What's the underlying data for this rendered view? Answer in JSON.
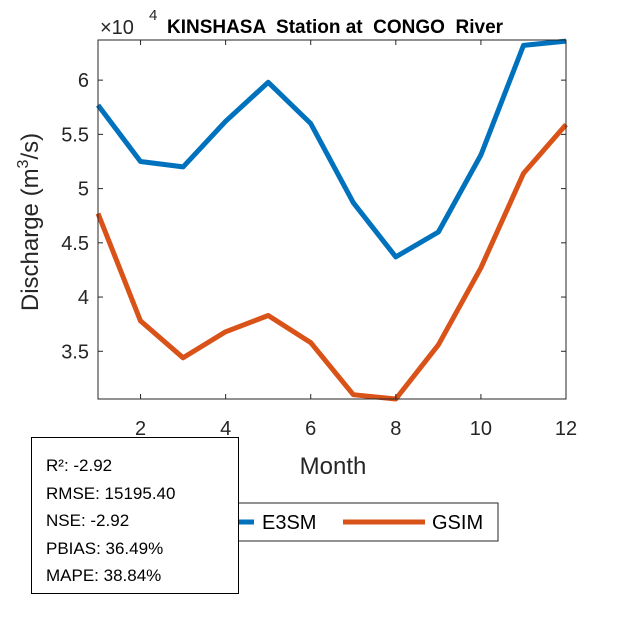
{
  "chart_data": {
    "type": "line",
    "title": "KINSHASA  Station at  CONGO  River",
    "xlabel": "Month",
    "ylabel_main": "Discharge (m",
    "ylabel_sup": "3",
    "ylabel_tail": "/s)",
    "y_multiplier": "×10",
    "y_multiplier_exp": "4",
    "xlim": [
      1,
      12
    ],
    "ylim": [
      3.06,
      6.37
    ],
    "y_scale": 10000,
    "xticks": [
      2,
      4,
      6,
      8,
      10,
      12
    ],
    "xtick_labels": [
      "2",
      "4",
      "6",
      "8",
      "10",
      "12"
    ],
    "yticks": [
      3.5,
      4,
      4.5,
      5,
      5.5,
      6
    ],
    "ytick_labels": [
      "3.5",
      "4",
      "4.5",
      "5",
      "5.5",
      "6"
    ],
    "grid": false,
    "x": [
      1,
      2,
      3,
      4,
      5,
      6,
      7,
      8,
      9,
      10,
      11,
      12
    ],
    "series": [
      {
        "name": "E3SM",
        "color": "#0072BD",
        "values": [
          5.77,
          5.25,
          5.2,
          5.62,
          5.98,
          5.6,
          4.87,
          4.37,
          4.6,
          5.31,
          6.32,
          6.36
        ]
      },
      {
        "name": "GSIM",
        "color": "#D95319",
        "values": [
          4.77,
          3.78,
          3.44,
          3.68,
          3.83,
          3.58,
          3.1,
          3.06,
          3.56,
          4.27,
          5.14,
          5.59
        ]
      }
    ],
    "legend": {
      "placement": "bottom-center",
      "entries": [
        "E3SM",
        "GSIM"
      ]
    }
  },
  "stats": {
    "lines": [
      "R²: -2.92",
      "RMSE: 15195.40",
      "NSE: -2.92",
      "PBIAS: 36.49%",
      "MAPE: 38.84%"
    ]
  }
}
